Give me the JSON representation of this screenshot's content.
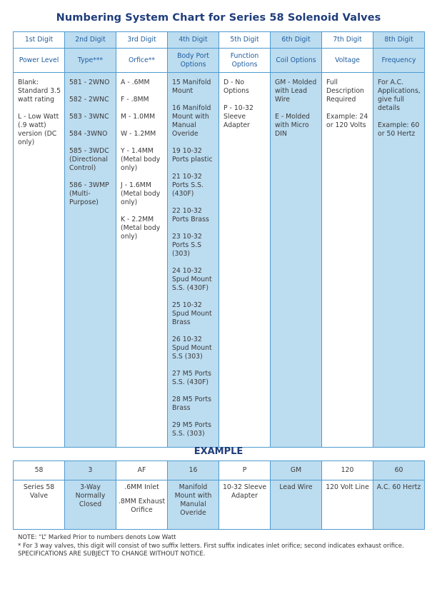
{
  "title": "Numbering System Chart for Series 58 Solenoid Valves",
  "columns": [
    {
      "digit": "1st Digit",
      "label": "Power Level",
      "items": [
        "Blank: Standard 3.5 watt rating",
        "L - Low Watt (.9 watt) version (DC only)"
      ]
    },
    {
      "digit": "2nd Digit",
      "label": "Type***",
      "items": [
        "581 - 2WNO",
        "582 - 2WNC",
        "583 - 3WNC",
        "584 -3WNO",
        "585 - 3WDC (Directional Control)",
        "586 - 3WMP (Multi-Purpose)"
      ]
    },
    {
      "digit": "3rd Digit",
      "label": "Orfice**",
      "items": [
        "A - .6MM",
        "F - .8MM",
        "M - 1.0MM",
        "W - 1.2MM",
        "Y - 1.4MM (Metal body only)",
        "J - 1.6MM (Metal body only)",
        "K - 2.2MM (Metal body only)"
      ]
    },
    {
      "digit": "4th Digit",
      "label": "Body Port Options",
      "items": [
        "15 Manifold Mount",
        "16 Manifold Mount with Manual Overide",
        "19 10-32 Ports plastic",
        "21 10-32 Ports S.S. (430F)",
        "22 10-32 Ports Brass",
        "23 10-32 Ports S.S (303)",
        "24 10-32 Spud Mount S.S. (430F)",
        "25 10-32 Spud Mount Brass",
        "26 10-32 Spud Mount S.S (303)",
        "27 M5 Ports S.S. (430F)",
        "28 M5 Ports Brass",
        "29 M5 Ports S.S. (303)"
      ]
    },
    {
      "digit": "5th Digit",
      "label": "Function Options",
      "items": [
        "D - No Options",
        "P - 10-32 Sleeve Adapter"
      ]
    },
    {
      "digit": "6th Digit",
      "label": "Coil Options",
      "items": [
        "GM - Molded with Lead Wire",
        "E - Molded with Micro DIN"
      ]
    },
    {
      "digit": "7th Digit",
      "label": "Voltage",
      "items": [
        "Full Description Required",
        "Example: 24 or 120 Volts"
      ]
    },
    {
      "digit": "8th Digit",
      "label": "Frequency",
      "items": [
        "For A.C. Applications, give full details",
        "Example: 60 or 50 Hertz"
      ]
    }
  ],
  "example": {
    "title": "EXAMPLE",
    "codes": [
      "58",
      "3",
      "AF",
      "16",
      "P",
      "GM",
      "120",
      "60"
    ],
    "descriptions": [
      [
        "Series 58 Valve"
      ],
      [
        "3-Way Normally Closed"
      ],
      [
        ".6MM Inlet",
        ".8MM Exhaust Orifice"
      ],
      [
        "Manifold Mount with Manulal Overide"
      ],
      [
        "10-32 Sleeve Adapter"
      ],
      [
        "Lead Wire"
      ],
      [
        "120 Volt Line"
      ],
      [
        "A.C. 60 Hertz"
      ]
    ]
  },
  "notes": {
    "line1": "NOTE: “L” Marked Prior to numbers denots Low Watt",
    "line2": "* For 3 way valves, this digit will consist of two suffix letters. First suffix indicates inlet orifice; second indicates exhaust orifice.",
    "line3": "SPECIFICATIONS ARE SUBJECT TO CHANGE WITHOUT NOTICE."
  },
  "colors": {
    "title": "#1f3d7a",
    "header_text": "#1f5d9e",
    "border": "#4d9bd1",
    "shade": "#bcdcf0"
  }
}
